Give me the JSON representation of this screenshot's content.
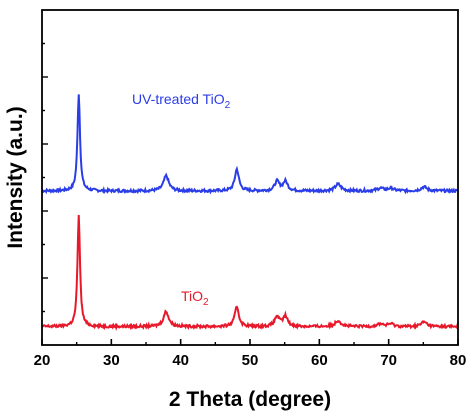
{
  "chart_data": {
    "type": "line",
    "title": "",
    "xlabel": "2 Theta (degree)",
    "ylabel": "Intensity (a.u.)",
    "xlim": [
      20,
      80
    ],
    "xticks": [
      20,
      30,
      40,
      50,
      60,
      70,
      80
    ],
    "yticks_labeled": false,
    "grid": false,
    "legend": "inline",
    "series": [
      {
        "name": "UV-treated TiO2",
        "label_main": "UV-treated TiO",
        "label_sub": "2",
        "color": "#2b3de6",
        "baseline": 0.46,
        "noise": 0.004,
        "peaks": [
          {
            "x": 25.3,
            "h": 0.29,
            "w": 0.22
          },
          {
            "x": 37.9,
            "h": 0.045,
            "w": 0.45
          },
          {
            "x": 48.1,
            "h": 0.065,
            "w": 0.35
          },
          {
            "x": 53.9,
            "h": 0.028,
            "w": 0.4
          },
          {
            "x": 55.1,
            "h": 0.028,
            "w": 0.4
          },
          {
            "x": 62.7,
            "h": 0.02,
            "w": 0.5
          },
          {
            "x": 68.8,
            "h": 0.008,
            "w": 0.5
          },
          {
            "x": 70.3,
            "h": 0.008,
            "w": 0.5
          },
          {
            "x": 75.1,
            "h": 0.012,
            "w": 0.5
          }
        ]
      },
      {
        "name": "TiO2",
        "label_main": "TiO",
        "label_sub": "2",
        "color": "#e8182b",
        "baseline": 0.055,
        "noise": 0.004,
        "peaks": [
          {
            "x": 25.3,
            "h": 0.33,
            "w": 0.22
          },
          {
            "x": 37.9,
            "h": 0.045,
            "w": 0.45
          },
          {
            "x": 48.1,
            "h": 0.06,
            "w": 0.35
          },
          {
            "x": 53.9,
            "h": 0.03,
            "w": 0.4
          },
          {
            "x": 55.1,
            "h": 0.03,
            "w": 0.4
          },
          {
            "x": 62.7,
            "h": 0.018,
            "w": 0.5
          },
          {
            "x": 68.8,
            "h": 0.008,
            "w": 0.5
          },
          {
            "x": 70.3,
            "h": 0.008,
            "w": 0.5
          },
          {
            "x": 75.1,
            "h": 0.014,
            "w": 0.5
          }
        ]
      }
    ]
  }
}
